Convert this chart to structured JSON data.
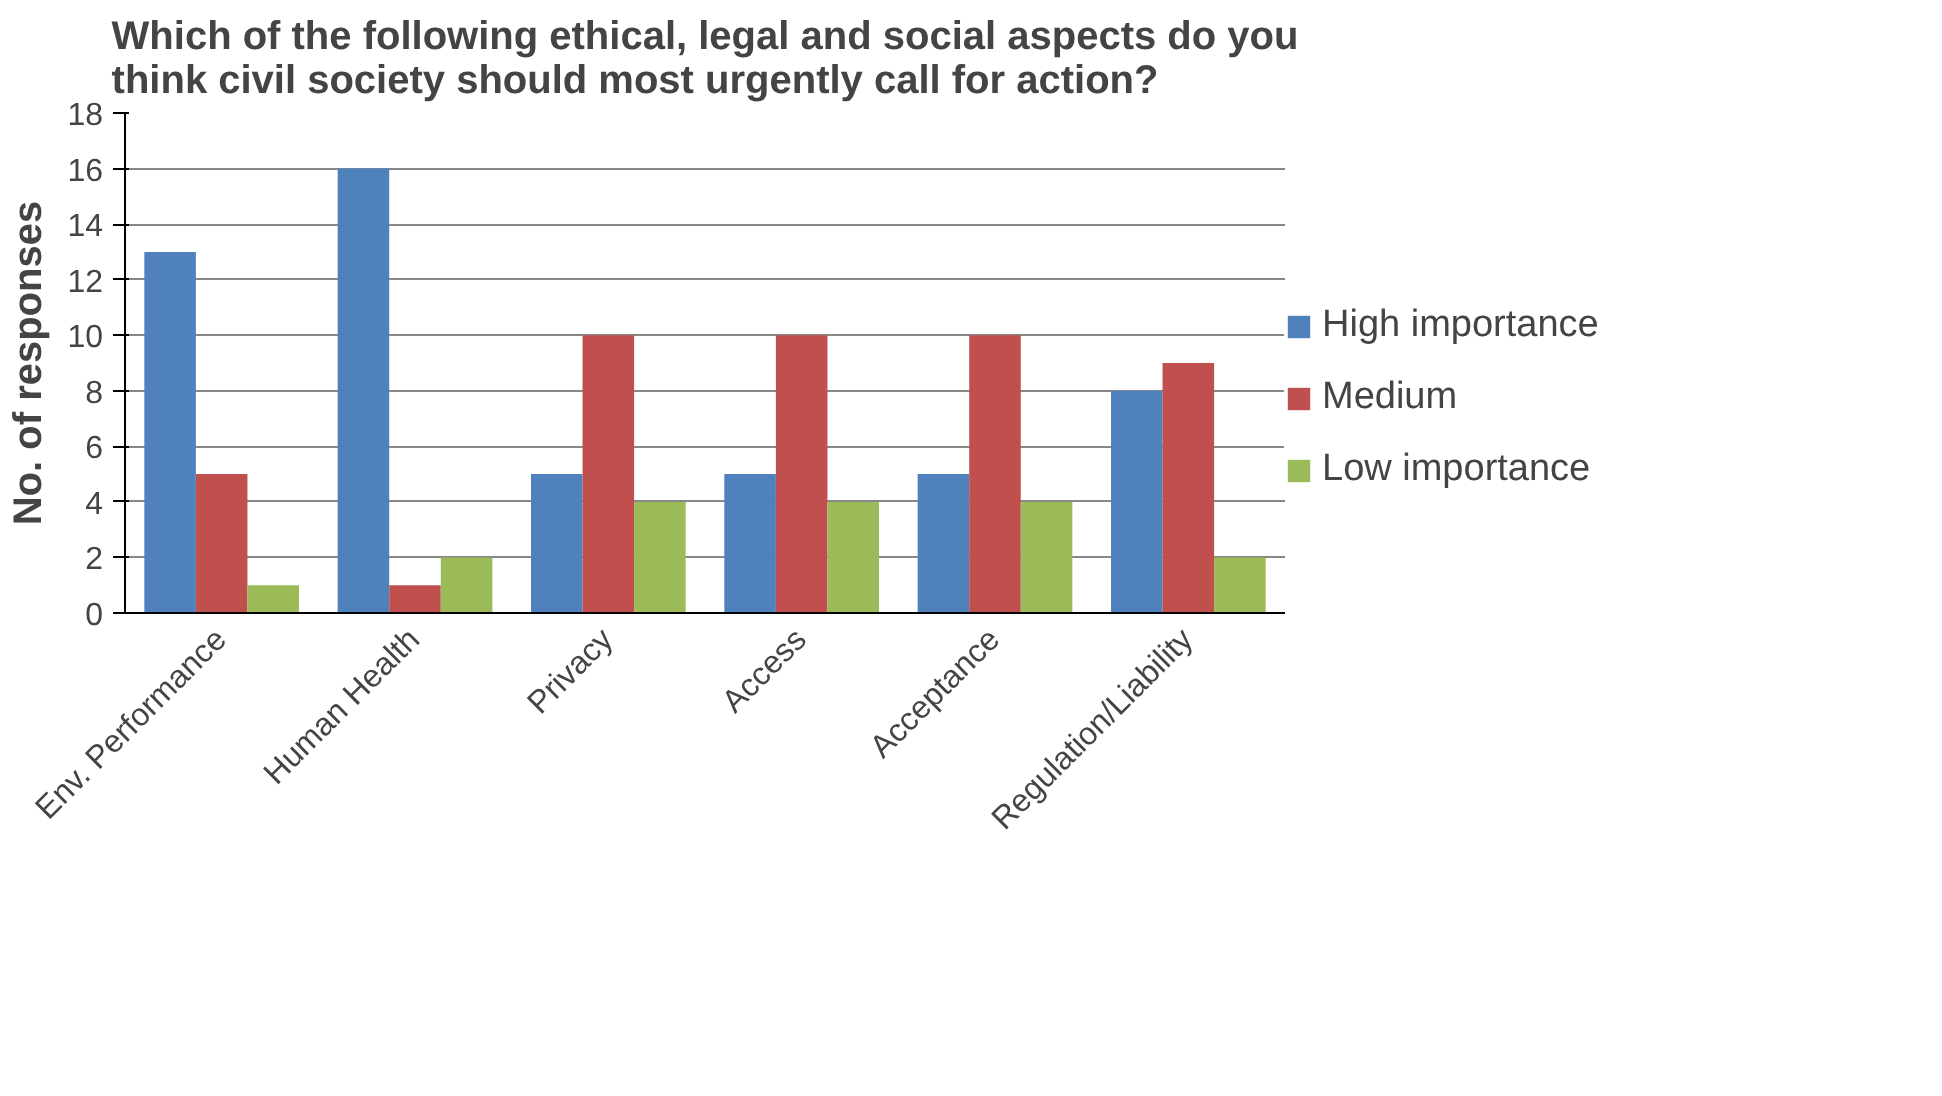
{
  "chart_data": {
    "type": "bar",
    "title": "Which of the following ethical, legal and social aspects do you think civil society should most urgently call for action?",
    "ylabel": "No. of responses",
    "categories": [
      "Env. Performance",
      "Human Health",
      "Privacy",
      "Access",
      "Acceptance",
      "Regulation/Liability"
    ],
    "series": [
      {
        "name": "High importance",
        "color": "#4f81bd",
        "values": [
          13,
          16,
          5,
          5,
          5,
          8
        ]
      },
      {
        "name": "Medium",
        "color": "#c0504d",
        "values": [
          5,
          1,
          10,
          10,
          10,
          9
        ]
      },
      {
        "name": "Low importance",
        "color": "#9bbb59",
        "values": [
          1,
          2,
          4,
          4,
          4,
          2
        ]
      }
    ],
    "ylim": [
      0,
      18
    ],
    "yticks": [
      0,
      2,
      4,
      6,
      8,
      10,
      12,
      14,
      16,
      18
    ],
    "grid": "y",
    "legend": "right"
  }
}
